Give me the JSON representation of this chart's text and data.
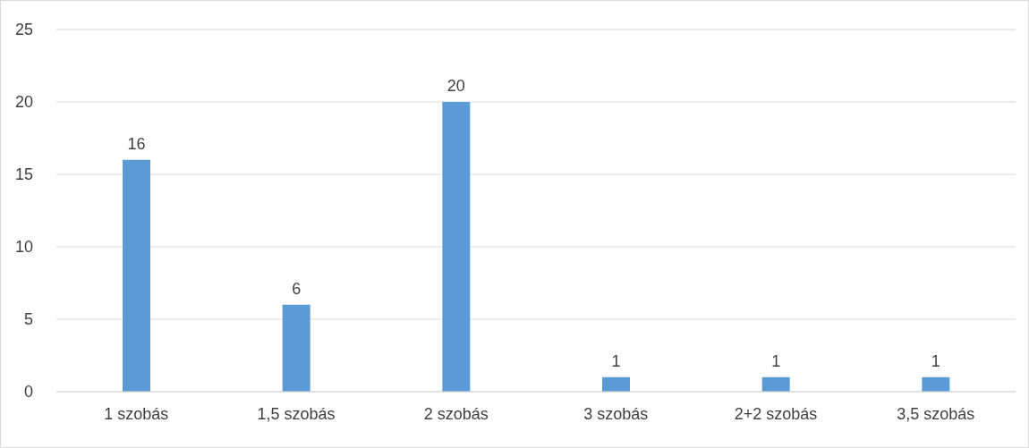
{
  "chart_data": {
    "type": "bar",
    "categories": [
      "1 szobás",
      "1,5 szobás",
      "2 szobás",
      "3 szobás",
      "2+2 szobás",
      "3,5 szobás"
    ],
    "values": [
      16,
      6,
      20,
      1,
      1,
      1
    ],
    "color": "#5b9bd5",
    "ylim": [
      0,
      25
    ],
    "yticks": [
      0,
      5,
      10,
      15,
      20,
      25
    ],
    "grid": "y",
    "data_labels": true
  }
}
